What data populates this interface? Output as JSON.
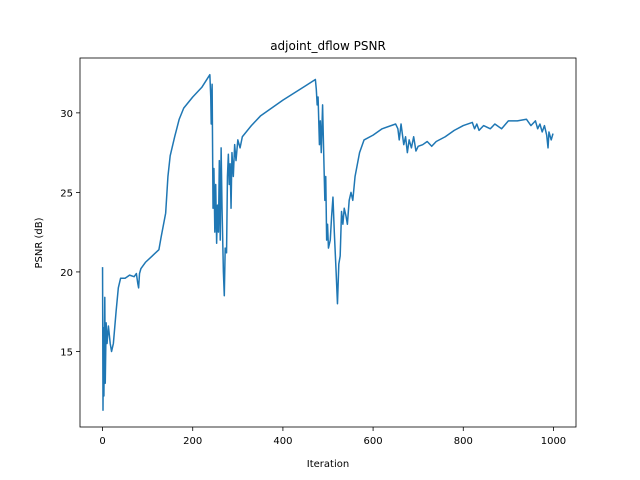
{
  "chart_data": {
    "type": "line",
    "title": "adjoint_dflow PSNR",
    "x_label": "Iteration",
    "y_label": "PSNR (dB)",
    "xlim": [
      -50,
      1050
    ],
    "xticks": [
      0,
      200,
      400,
      600,
      800,
      1000
    ],
    "ylim": [
      10.25,
      33.45
    ],
    "yticks": [
      15,
      20,
      25,
      30
    ],
    "grid": false,
    "series": [
      {
        "color": "#1f77b4",
        "x": [
          0,
          1,
          2,
          3,
          5,
          6,
          8,
          10,
          13,
          17,
          20,
          24,
          30,
          35,
          40,
          50,
          60,
          70,
          75,
          78,
          80,
          82,
          85,
          95,
          110,
          125,
          130,
          140,
          145,
          150,
          160,
          170,
          180,
          200,
          220,
          238,
          240,
          241,
          243,
          245,
          247,
          249,
          251,
          253,
          255,
          257,
          259,
          261,
          263,
          265,
          268,
          270,
          272,
          275,
          277,
          279,
          281,
          283,
          285,
          287,
          290,
          293,
          296,
          300,
          305,
          310,
          330,
          350,
          400,
          450,
          472,
          474,
          476,
          478,
          481,
          483,
          485,
          488,
          490,
          493,
          495,
          497,
          499,
          501,
          505,
          508,
          511,
          514,
          518,
          521,
          524,
          527,
          530,
          533,
          536,
          540,
          543,
          547,
          551,
          555,
          560,
          570,
          580,
          600,
          620,
          650,
          655,
          658,
          662,
          668,
          672,
          676,
          680,
          685,
          690,
          695,
          700,
          710,
          720,
          730,
          740,
          760,
          780,
          800,
          820,
          825,
          830,
          835,
          845,
          860,
          870,
          885,
          900,
          920,
          940,
          950,
          960,
          965,
          970,
          975,
          980,
          985,
          988,
          990,
          995,
          999
        ],
        "values": [
          20.3,
          11.3,
          16.5,
          12.2,
          18.4,
          13,
          16.8,
          15.5,
          16.6,
          15.5,
          15.0,
          15.5,
          17.5,
          19.0,
          19.6,
          19.6,
          19.8,
          19.7,
          19.9,
          19.3,
          19.0,
          19.9,
          20.2,
          20.6,
          21.0,
          21.4,
          22.2,
          23.7,
          26.0,
          27.3,
          28.5,
          29.6,
          30.3,
          31.0,
          31.6,
          32.4,
          31.0,
          29.3,
          31.8,
          24.0,
          26.5,
          22.5,
          25.5,
          21.8,
          24.2,
          22.5,
          27.0,
          22.0,
          27.8,
          24.0,
          20.0,
          18.5,
          21.5,
          21.2,
          26.0,
          27.4,
          25.5,
          26.8,
          24.0,
          27.5,
          26.0,
          28.0,
          27.0,
          28.3,
          27.8,
          28.5,
          29.2,
          29.8,
          30.8,
          31.7,
          32.1,
          31.5,
          30.5,
          31.0,
          28.0,
          29.5,
          27.5,
          30.5,
          28.0,
          24.5,
          26.0,
          22.0,
          23.0,
          21.5,
          22.0,
          23.5,
          24.7,
          22.5,
          20.0,
          18.0,
          20.5,
          21.0,
          23.8,
          23.0,
          24.0,
          23.5,
          23.0,
          24.5,
          25.0,
          24.5,
          26.0,
          27.5,
          28.3,
          28.6,
          29.0,
          29.3,
          29.0,
          28.3,
          29.3,
          28.0,
          28.5,
          27.5,
          28.3,
          27.8,
          28.5,
          27.6,
          27.9,
          28.0,
          28.2,
          27.9,
          28.2,
          28.5,
          28.9,
          29.2,
          29.4,
          29.0,
          29.3,
          28.9,
          29.2,
          29.0,
          29.3,
          29.0,
          29.5,
          29.5,
          29.6,
          29.2,
          29.5,
          29.0,
          29.3,
          28.8,
          29.2,
          28.6,
          27.8,
          28.8,
          28.3,
          28.7
        ]
      }
    ]
  }
}
